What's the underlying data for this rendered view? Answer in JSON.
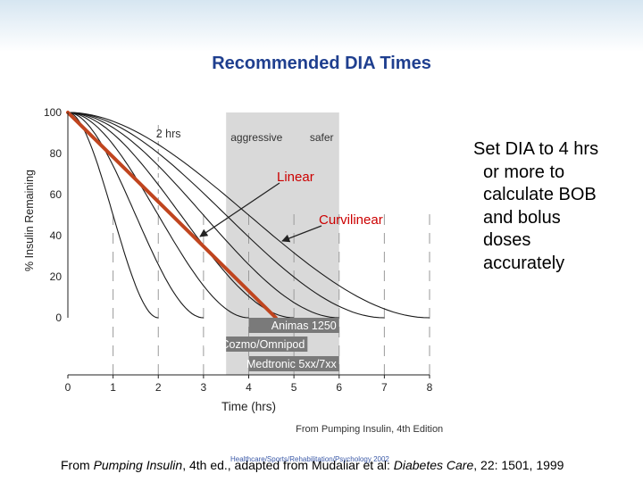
{
  "slide": {
    "title": "Recommended DIA Times",
    "side_text": [
      "Set DIA to 4 hrs",
      "or more to",
      "calculate BOB",
      "and bolus",
      "doses",
      "accurately"
    ],
    "footer": {
      "prefix": "From ",
      "book": "Pumping Insulin",
      "middle": ", 4th ed., adapted from Mudaliar et al: ",
      "journal": "Diabetes Care",
      "suffix": ", 22: 1501, 1999"
    },
    "watermark": "Healthcare/Sports/Rehabilitation/Psychology 2002"
  },
  "chart_data": {
    "type": "line",
    "xlabel": "Time (hrs)",
    "ylabel": "% Insulin Remaining",
    "xlim": [
      0,
      8
    ],
    "ylim": [
      0,
      100
    ],
    "x_ticks": [
      "0",
      "1",
      "2",
      "3",
      "4",
      "5",
      "6",
      "7",
      "8"
    ],
    "y_ticks": [
      "0",
      "20",
      "40",
      "60",
      "80",
      "100"
    ],
    "zone_labels": {
      "two_hrs": "2 hrs",
      "aggressive": "aggressive",
      "safer": "safer"
    },
    "curvilinear_dia_hours": [
      2,
      3,
      4,
      5,
      6,
      7,
      8
    ],
    "linear_line": {
      "x": [
        0,
        4.6
      ],
      "y": [
        100,
        0
      ]
    },
    "annotations": {
      "linear": "Linear",
      "curvilinear": "Curvilinear"
    },
    "pump_bars": [
      {
        "label": "Animas 1250",
        "start": 4,
        "end": 6
      },
      {
        "label": "Deltec Cozmo/Omnipod",
        "start": 3.5,
        "end": 5.3
      },
      {
        "label": "Medtronic 5xx/7xx",
        "start": 4,
        "end": 6
      }
    ],
    "source": "From Pumping Insulin, 4th Edition",
    "colors": {
      "curves": "#1a1a1a",
      "linear": "#c0451f",
      "shaded_zone": "#d2d2d2",
      "bars": "#7a7a7a",
      "annotation_text": "#cc0000"
    }
  }
}
